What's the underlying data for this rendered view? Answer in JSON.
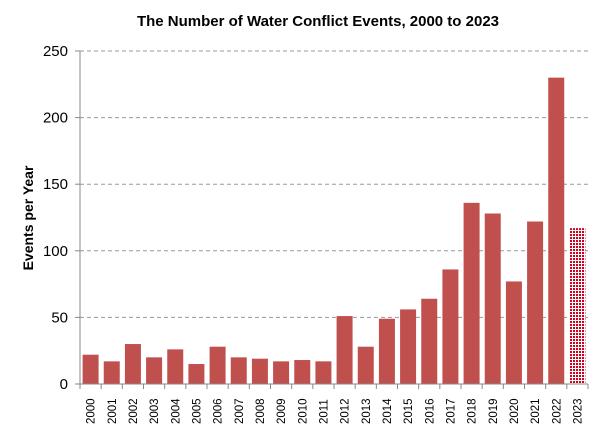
{
  "chart_data": {
    "type": "bar",
    "title": "The Number of Water Conflict Events, 2000 to 2023",
    "xlabel": "",
    "ylabel": "Events per Year",
    "ylim": [
      0,
      250
    ],
    "yticks": [
      0,
      50,
      100,
      150,
      200,
      250
    ],
    "grid": true,
    "categories": [
      "2000",
      "2001",
      "2002",
      "2003",
      "2004",
      "2005",
      "2006",
      "2007",
      "2008",
      "2009",
      "2010",
      "2011",
      "2012",
      "2013",
      "2014",
      "2015",
      "2016",
      "2017",
      "2018",
      "2019",
      "2020",
      "2021",
      "2022",
      "2023"
    ],
    "values": [
      22,
      17,
      30,
      20,
      26,
      15,
      28,
      20,
      19,
      17,
      18,
      17,
      51,
      28,
      49,
      56,
      64,
      86,
      136,
      128,
      77,
      122,
      230,
      117
    ],
    "bar_color": "#c0504d",
    "highlight": {
      "category": "2023",
      "style": "dotted",
      "color": "#d0021b"
    }
  }
}
